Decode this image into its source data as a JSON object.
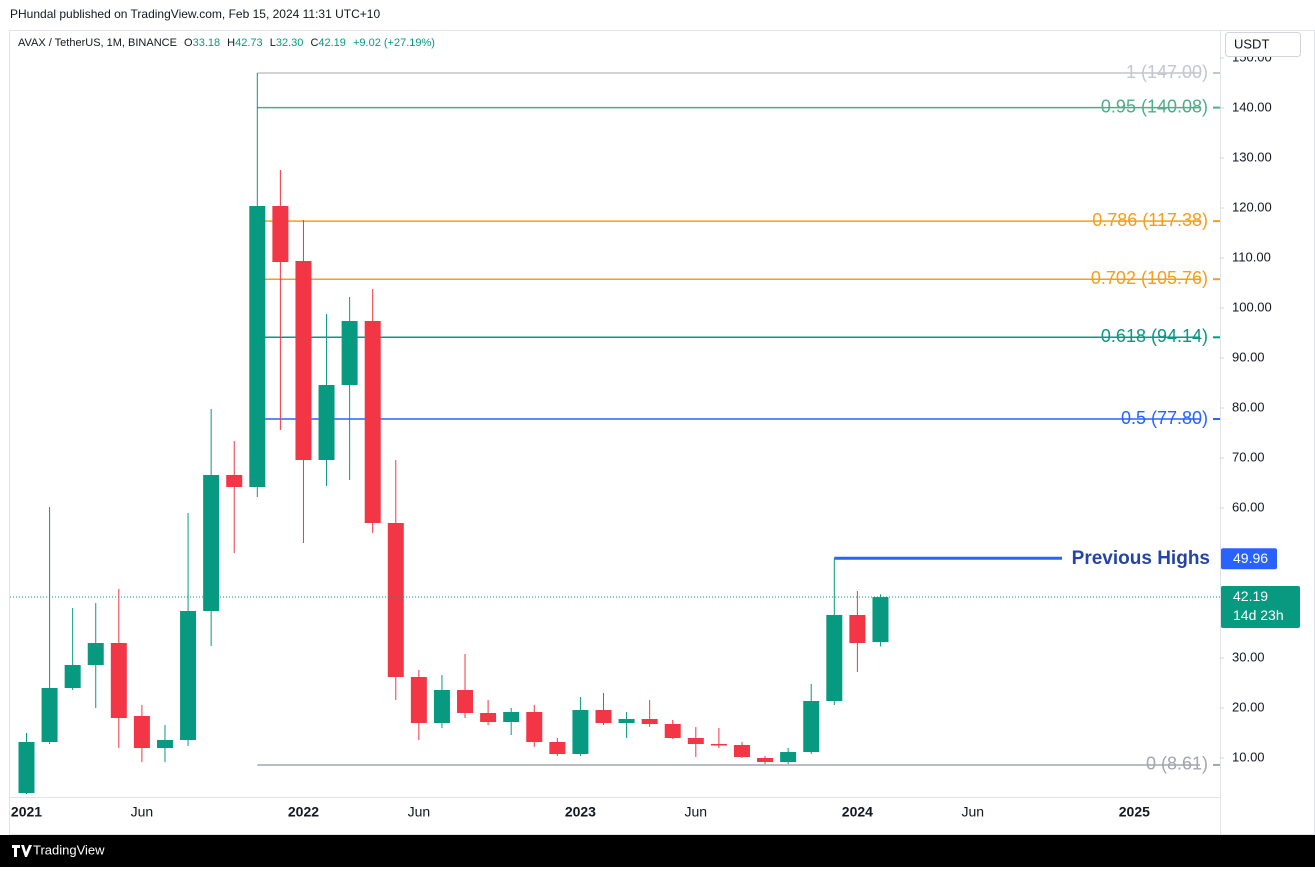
{
  "header": {
    "publisher": "PHundal published on TradingView.com, Feb 15, 2024 11:31 UTC+10"
  },
  "legend": {
    "symbol": "AVAX / TetherUS, 1M, BINANCE",
    "fields": [
      "O",
      "H",
      "L",
      "C"
    ],
    "values": [
      "33.18",
      "42.73",
      "32.30",
      "42.19"
    ],
    "change": "+9.02 (+27.19%)"
  },
  "currency": "USDT",
  "countdown": "14d 23h",
  "footer": {
    "brand": "TradingView"
  },
  "chart_data": {
    "type": "candlestick",
    "categories": [
      "2021",
      null,
      null,
      null,
      null,
      "Jun",
      null,
      null,
      null,
      null,
      null,
      null,
      "2022",
      null,
      null,
      null,
      null,
      "Jun",
      null,
      null,
      null,
      null,
      null,
      null,
      "2023",
      null,
      null,
      null,
      null,
      "Jun",
      null,
      null,
      null,
      null,
      null,
      null,
      "2024",
      null,
      null,
      null,
      null,
      "Jun",
      null,
      null,
      null,
      null,
      null,
      null,
      "2025"
    ],
    "open": [
      3.0,
      13.2,
      24.0,
      28.6,
      33.0,
      18.4,
      12.0,
      13.6,
      39.4,
      66.6,
      64.2,
      120.4,
      109.4,
      69.6,
      84.6,
      97.4,
      57.0,
      26.2,
      17.0,
      23.6,
      19.0,
      17.2,
      19.2,
      13.2,
      10.8,
      19.6,
      17.0,
      17.8,
      16.8,
      14.0,
      12.8,
      12.6,
      10.0,
      9.2,
      11.2,
      21.4,
      38.6,
      33.18,
      null,
      null,
      null,
      null,
      null,
      null,
      null,
      null,
      null,
      null,
      null
    ],
    "high": [
      15.0,
      60.2,
      40.0,
      41.0,
      43.8,
      20.6,
      16.6,
      59.0,
      79.8,
      73.4,
      147.0,
      127.6,
      117.6,
      98.8,
      102.2,
      103.8,
      69.6,
      27.6,
      26.6,
      30.8,
      21.6,
      20.0,
      20.6,
      14.0,
      22.2,
      23.0,
      19.2,
      21.6,
      17.6,
      16.2,
      16.0,
      13.2,
      10.4,
      12.0,
      24.8,
      49.96,
      43.4,
      42.73,
      null,
      null,
      null,
      null,
      null,
      null,
      null,
      null,
      null,
      null,
      null
    ],
    "low": [
      2.8,
      12.8,
      23.6,
      20.0,
      12.0,
      9.2,
      9.2,
      12.4,
      32.4,
      51.0,
      62.2,
      75.6,
      53.0,
      64.4,
      65.6,
      55.0,
      21.6,
      13.6,
      16.0,
      18.0,
      16.6,
      14.6,
      12.2,
      10.4,
      10.4,
      16.6,
      14.0,
      16.2,
      13.8,
      10.2,
      12.0,
      10.0,
      8.8,
      8.8,
      10.8,
      20.6,
      27.2,
      32.3,
      null,
      null,
      null,
      null,
      null,
      null,
      null,
      null,
      null,
      null,
      null
    ],
    "close": [
      13.2,
      24.0,
      28.6,
      33.0,
      18.0,
      12.0,
      13.6,
      39.4,
      66.6,
      64.2,
      120.4,
      109.2,
      69.6,
      84.6,
      97.4,
      57.0,
      26.2,
      17.0,
      23.6,
      19.0,
      17.2,
      19.2,
      13.2,
      10.8,
      19.6,
      17.0,
      17.8,
      16.8,
      14.0,
      12.8,
      12.6,
      10.2,
      9.2,
      11.2,
      21.4,
      38.6,
      33.0,
      42.19,
      null,
      null,
      null,
      null,
      null,
      null,
      null,
      null,
      null,
      null,
      null
    ],
    "up_color": "#089981",
    "down_color": "#f23645",
    "ylim": [
      2.2,
      150.2
    ],
    "yticks": [
      {
        "value": 10,
        "label": "10.00"
      },
      {
        "value": 20,
        "label": "20.00"
      },
      {
        "value": 30,
        "label": "30.00"
      },
      {
        "value": 40,
        "label": "40.00"
      },
      {
        "value": 50,
        "label": "50.00"
      },
      {
        "value": 60,
        "label": "60.00"
      },
      {
        "value": 70,
        "label": "70.00"
      },
      {
        "value": 80,
        "label": "80.00"
      },
      {
        "value": 90,
        "label": "90.00"
      },
      {
        "value": 100,
        "label": "100.00"
      },
      {
        "value": 110,
        "label": "110.00"
      },
      {
        "value": 120,
        "label": "120.00"
      },
      {
        "value": 130,
        "label": "130.00"
      },
      {
        "value": 140,
        "label": "140.00"
      },
      {
        "value": 150,
        "label": "150.00"
      }
    ],
    "grid": false,
    "fib_levels": [
      {
        "label": "1 (147.00)",
        "value": 147.0,
        "color": "#c3c6ce"
      },
      {
        "label": "0.95 (140.08)",
        "value": 140.08,
        "color": "#4caf8a"
      },
      {
        "label": "0.786 (117.38)",
        "value": 117.38,
        "color": "#f59e1b"
      },
      {
        "label": "0.702 (105.76)",
        "value": 105.76,
        "color": "#f59e1b"
      },
      {
        "label": "0.618 (94.14)",
        "value": 94.14,
        "color": "#089981"
      },
      {
        "label": "0.5 (77.80)",
        "value": 77.8,
        "color": "#2962ff"
      },
      {
        "label": "0 (8.61)",
        "value": 8.61,
        "color": "#a3a6af"
      }
    ],
    "annotation": {
      "text": "Previous Highs",
      "value": 49.96,
      "color": "#2962ff",
      "text_color": "#2444a8"
    }
  }
}
